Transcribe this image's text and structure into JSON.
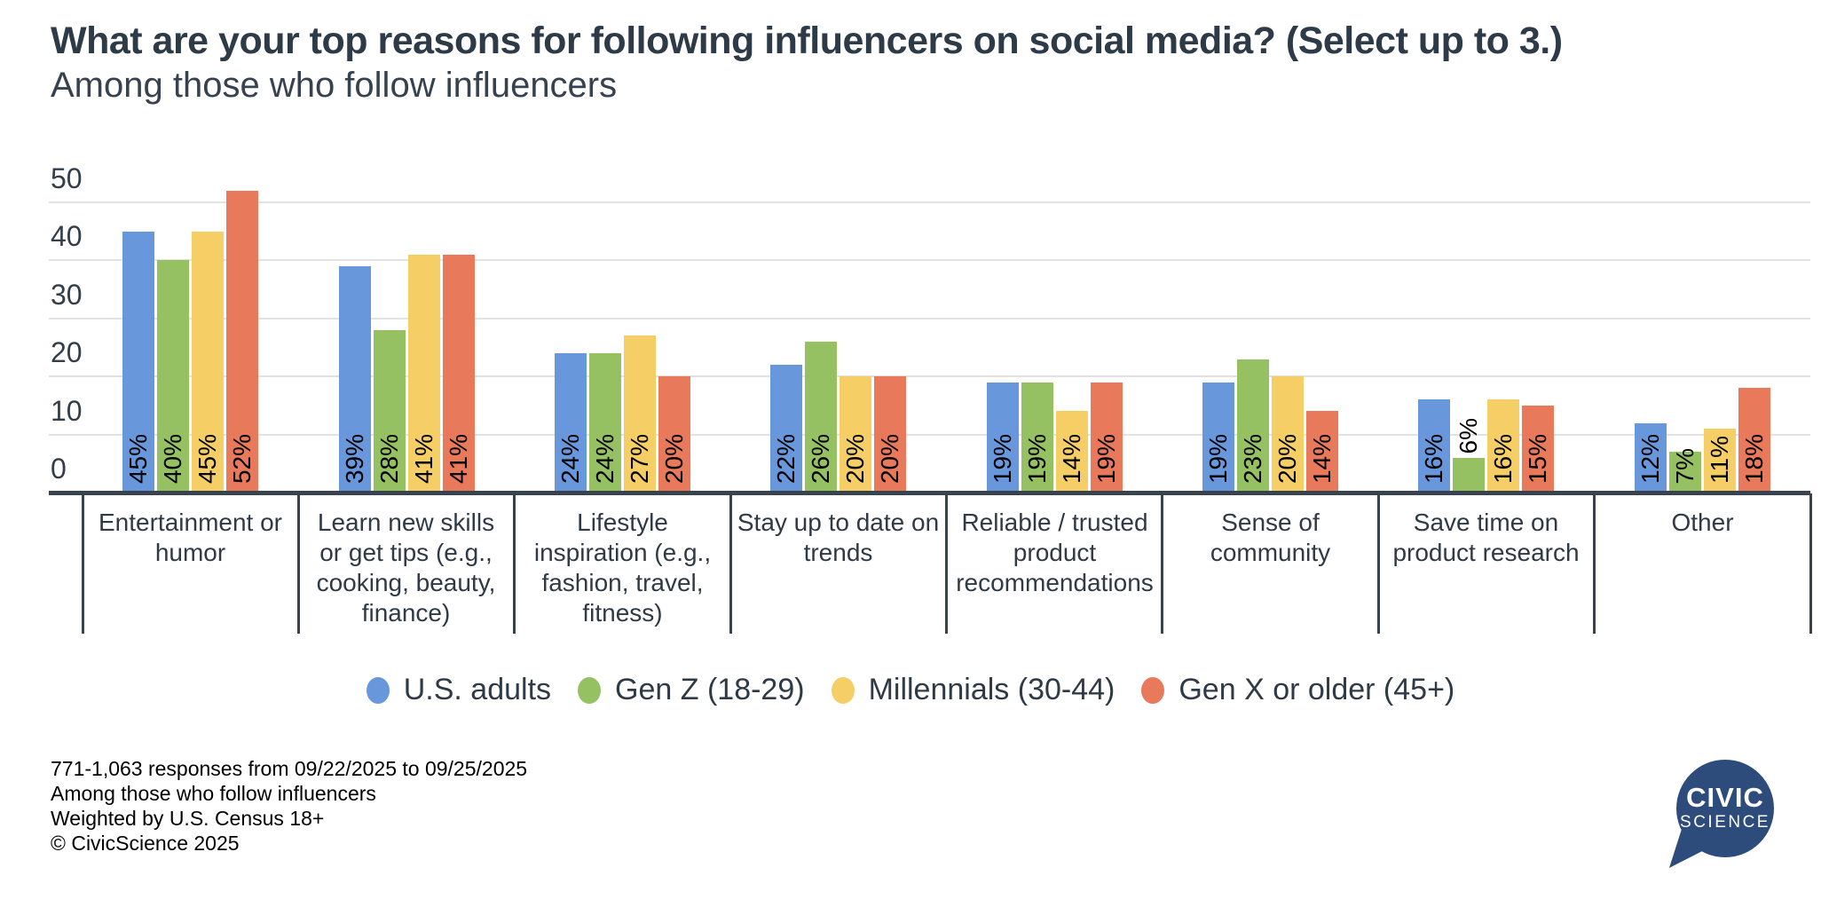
{
  "title": "What are your top reasons for following influencers on social media? (Select up to 3.)",
  "subtitle": "Among those who follow influencers",
  "chart_data": {
    "type": "bar",
    "categories": [
      "Entertainment or\nhumor",
      "Learn new skills\nor get tips (e.g.,\ncooking, beauty,\nfinance)",
      "Lifestyle\ninspiration (e.g.,\nfashion, travel,\nfitness)",
      "Stay up to date on\ntrends",
      "Reliable / trusted\nproduct\nrecommendations",
      "Sense of\ncommunity",
      "Save time on\nproduct research",
      "Other"
    ],
    "series": [
      {
        "name": "U.S. adults",
        "color": "#6997DC",
        "values": [
          45,
          39,
          24,
          22,
          19,
          19,
          16,
          12
        ]
      },
      {
        "name": "Gen Z (18-29)",
        "color": "#95C162",
        "values": [
          40,
          28,
          24,
          26,
          19,
          23,
          6,
          7
        ]
      },
      {
        "name": "Millennials (30-44)",
        "color": "#F5CE66",
        "values": [
          45,
          41,
          27,
          20,
          14,
          20,
          16,
          11
        ]
      },
      {
        "name": "Gen X or older (45+)",
        "color": "#E8795A",
        "values": [
          52,
          41,
          20,
          20,
          19,
          14,
          15,
          18
        ]
      }
    ],
    "value_suffix": "%",
    "yticks": [
      0,
      10,
      20,
      30,
      40,
      50
    ],
    "ylim": [
      0,
      50
    ],
    "grid": true,
    "legend_position": "bottom",
    "gridline_color": "#E2E2E2",
    "axis_color": "#39434D"
  },
  "footer": {
    "lines": [
      "771-1,063 responses from 09/22/2025 to 09/25/2025",
      "Among those who follow influencers",
      "Weighted by U.S. Census 18+",
      "© CivicScience 2025"
    ]
  },
  "logo": {
    "line1": "CIVIC",
    "line2": "SCIENCE",
    "color": "#2D4C7B"
  }
}
